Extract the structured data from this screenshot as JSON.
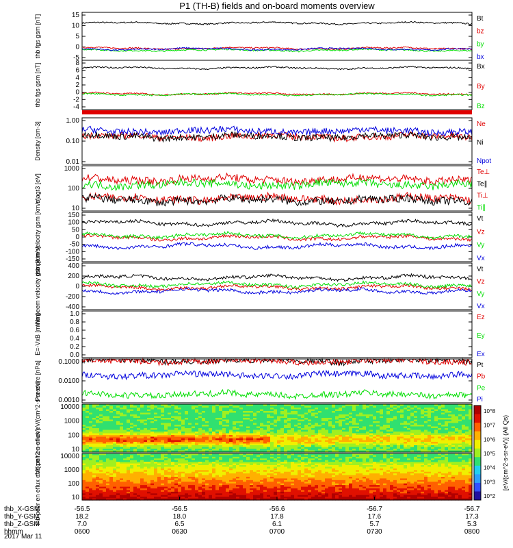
{
  "title": "P1 (TH-B) fields and on-board moments overview",
  "date_label": "2017 Mar 11",
  "colors": {
    "black": "#000000",
    "red": "#e00000",
    "green": "#00dd00",
    "blue": "#0000dd"
  },
  "footer": {
    "rows": [
      {
        "label": "thb_X-GSM",
        "values": [
          "-56.5",
          "-56.5",
          "-56.6",
          "-56.7",
          "-56.7"
        ]
      },
      {
        "label": "thb_Y-GSM",
        "values": [
          "18.2",
          "18.0",
          "17.8",
          "17.6",
          "17.3"
        ]
      },
      {
        "label": "thb_Z-GSM",
        "values": [
          "7.0",
          "6.5",
          "6.1",
          "5.7",
          "5.3"
        ]
      },
      {
        "label": "hhmm",
        "values": [
          "0600",
          "0630",
          "0700",
          "0730",
          "0800"
        ]
      }
    ]
  },
  "chart_data": [
    {
      "type": "line",
      "ylabel": "thb fgs gsm [nT]",
      "ylim": [
        -5,
        15
      ],
      "yticks": [
        "15",
        "10",
        "5",
        "0",
        "-5"
      ],
      "series": [
        {
          "name": "Bt",
          "color": "#000000"
        },
        {
          "name": "bz",
          "color": "#e00000"
        },
        {
          "name": "by",
          "color": "#00dd00"
        },
        {
          "name": "bx",
          "color": "#0000dd"
        }
      ],
      "levels": [
        10.5,
        0.0,
        -0.8,
        -0.3
      ]
    },
    {
      "type": "line",
      "ylabel": "thb fgs gsm [nT]",
      "ylim": [
        -5,
        9
      ],
      "yticks": [
        "8",
        "6",
        "4",
        "2",
        "0",
        "-2",
        "-4"
      ],
      "series": [
        {
          "name": "Bx",
          "color": "#000000"
        },
        {
          "name": "By",
          "color": "#e00000"
        },
        {
          "name": "Bz",
          "color": "#00dd00"
        }
      ],
      "levels": [
        6.8,
        -0.5,
        -0.7
      ]
    },
    {
      "type": "line",
      "ylabel": "Density [cm-3]",
      "ylim": [
        0.01,
        3
      ],
      "scale": "log",
      "yticks": [
        "1.00",
        "0.10",
        "0.01"
      ],
      "series": [
        {
          "name": "Ne",
          "color": "#e00000"
        },
        {
          "name": "Ni",
          "color": "#000000"
        },
        {
          "name": "Npot",
          "color": "#0000dd"
        }
      ],
      "levels": [
        0.3,
        0.3,
        0.6
      ]
    },
    {
      "type": "line",
      "ylabel": "magt3 [eV]",
      "ylim": [
        10,
        1000
      ],
      "scale": "log",
      "yticks": [
        "1000",
        "100",
        "10"
      ],
      "series": [
        {
          "name": "Te⊥",
          "color": "#e00000"
        },
        {
          "name": "Te∥",
          "color": "#000000"
        },
        {
          "name": "Ti⊥",
          "color": "#e00000"
        },
        {
          "name": "Ti∥",
          "color": "#00dd00"
        }
      ],
      "levels": [
        35,
        30,
        250,
        150
      ]
    },
    {
      "type": "line",
      "ylabel": "thb peim velocity gsm [km/s]",
      "ylim": [
        -150,
        150
      ],
      "yticks": [
        "150",
        "100",
        "50",
        "0",
        "-50",
        "-100",
        "-150"
      ],
      "series": [
        {
          "name": "Vt",
          "color": "#000000"
        },
        {
          "name": "Vz",
          "color": "#e00000"
        },
        {
          "name": "Vy",
          "color": "#00dd00"
        },
        {
          "name": "Vx",
          "color": "#0000dd"
        }
      ],
      "levels": [
        85,
        -5,
        10,
        -55
      ]
    },
    {
      "type": "line",
      "ylabel": "thb peem velocity gsm [km/s]",
      "ylim": [
        -400,
        400
      ],
      "yticks": [
        "400",
        "200",
        "0",
        "-200",
        "-400"
      ],
      "series": [
        {
          "name": "Vt",
          "color": "#000000"
        },
        {
          "name": "Vz",
          "color": "#e00000"
        },
        {
          "name": "Vy",
          "color": "#00dd00"
        },
        {
          "name": "Vx",
          "color": "#0000dd"
        }
      ],
      "levels": [
        150,
        -20,
        30,
        -80
      ]
    },
    {
      "type": "line",
      "ylabel": "E=-VxB [mV/m]",
      "ylim": [
        0,
        1
      ],
      "yticks": [
        "1.0",
        "0.8",
        "0.6",
        "0.4",
        "0.2",
        "0.0"
      ],
      "series": [
        {
          "name": "Ez",
          "color": "#e00000"
        },
        {
          "name": "Ey",
          "color": "#00dd00"
        },
        {
          "name": "Ex",
          "color": "#0000dd"
        }
      ],
      "levels": []
    },
    {
      "type": "line",
      "ylabel": "Pressure [nPa]",
      "ylim": [
        0.0003,
        0.1
      ],
      "scale": "log",
      "yticks": [
        "0.1000",
        "0.0100",
        "0.0010"
      ],
      "series": [
        {
          "name": "Pt",
          "color": "#000000"
        },
        {
          "name": "Pb",
          "color": "#e00000"
        },
        {
          "name": "Pe",
          "color": "#00dd00"
        },
        {
          "name": "Pi",
          "color": "#0000dd"
        }
      ],
      "levels": [
        0.08,
        0.075,
        0.0009,
        0.012
      ]
    },
    {
      "type": "heatmap",
      "ylabel": "thb peir en eflux eV/(cm^2-s-sr-eV)",
      "ylim": [
        5,
        30000
      ],
      "scale": "log",
      "yticks": [
        "10000",
        "1000",
        "100",
        "10"
      ]
    },
    {
      "type": "heatmap",
      "ylabel": "thb peer en eflux eV/(cm^2-s-sr-eV)",
      "ylim": [
        5,
        30000
      ],
      "scale": "log",
      "yticks": [
        "10000",
        "1000",
        "100",
        "10"
      ]
    }
  ],
  "colorbar": {
    "label": "[eV/(cm^2-s-sr-eV)] (All Qs)",
    "ticks": [
      "10^8",
      "10^7",
      "10^6",
      "10^5",
      "10^4",
      "10^3",
      "10^2"
    ]
  }
}
